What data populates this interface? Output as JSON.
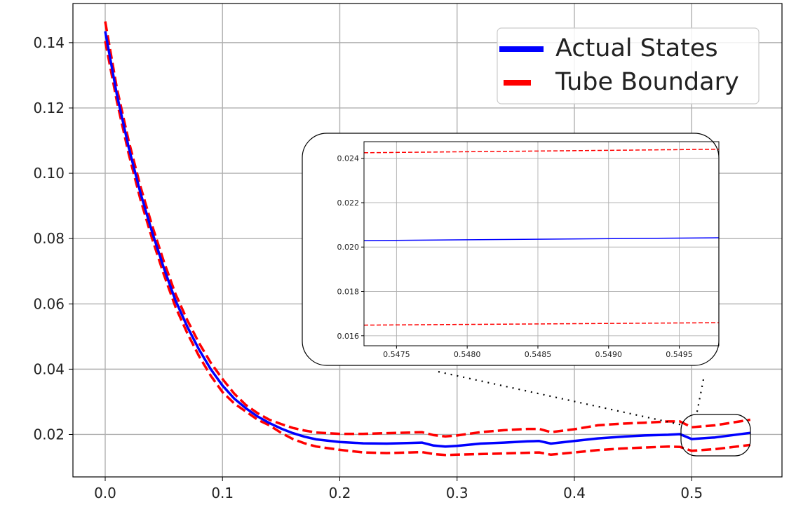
{
  "colors": {
    "actual": "#0000ff",
    "tube": "#ff0000",
    "grid": "#b0b0b0",
    "axis": "#000000"
  },
  "chart_data": [
    {
      "id": "main",
      "type": "line",
      "title": "",
      "xlabel": "",
      "ylabel": "",
      "xlim": [
        -0.0275,
        0.577
      ],
      "ylim": [
        0.007,
        0.152
      ],
      "grid": true,
      "legend_position": "top-right",
      "xticks": [
        0.0,
        0.1,
        0.2,
        0.3,
        0.4,
        0.5
      ],
      "xtick_labels": [
        "0.0",
        "0.1",
        "0.2",
        "0.3",
        "0.4",
        "0.5"
      ],
      "yticks": [
        0.02,
        0.04,
        0.06,
        0.08,
        0.1,
        0.12,
        0.14
      ],
      "ytick_labels": [
        "0.02",
        "0.04",
        "0.06",
        "0.08",
        "0.10",
        "0.12",
        "0.14"
      ],
      "x": [
        0.0,
        0.01,
        0.02,
        0.03,
        0.04,
        0.05,
        0.06,
        0.07,
        0.08,
        0.09,
        0.1,
        0.11,
        0.12,
        0.13,
        0.14,
        0.15,
        0.16,
        0.17,
        0.18,
        0.2,
        0.22,
        0.24,
        0.26,
        0.27,
        0.28,
        0.29,
        0.3,
        0.32,
        0.34,
        0.36,
        0.37,
        0.38,
        0.4,
        0.42,
        0.44,
        0.46,
        0.48,
        0.49,
        0.5,
        0.52,
        0.55
      ],
      "series": [
        {
          "name": "Actual States",
          "style": "solid",
          "values": [
            0.1435,
            0.124,
            0.108,
            0.094,
            0.082,
            0.071,
            0.061,
            0.053,
            0.046,
            0.04,
            0.035,
            0.031,
            0.028,
            0.0255,
            0.0235,
            0.0218,
            0.0204,
            0.0193,
            0.0185,
            0.0177,
            0.0173,
            0.0172,
            0.0174,
            0.0175,
            0.0166,
            0.0163,
            0.0165,
            0.0172,
            0.0175,
            0.0179,
            0.018,
            0.0172,
            0.018,
            0.0188,
            0.0193,
            0.0197,
            0.0199,
            0.0201,
            0.0186,
            0.0191,
            0.0205
          ]
        },
        {
          "name": "Tube Boundary",
          "style": "dashed",
          "values": [
            0.1465,
            0.126,
            0.11,
            0.096,
            0.084,
            0.073,
            0.063,
            0.055,
            0.048,
            0.042,
            0.037,
            0.0325,
            0.029,
            0.0265,
            0.0245,
            0.0232,
            0.022,
            0.0212,
            0.0206,
            0.0202,
            0.0202,
            0.0204,
            0.0206,
            0.0207,
            0.0198,
            0.0194,
            0.0197,
            0.0207,
            0.0213,
            0.0217,
            0.0217,
            0.0207,
            0.0216,
            0.0228,
            0.0233,
            0.0236,
            0.024,
            0.024,
            0.0222,
            0.0228,
            0.0245
          ]
        },
        {
          "name": "",
          "style": "dashed",
          "values": [
            0.1405,
            0.122,
            0.106,
            0.092,
            0.08,
            0.069,
            0.059,
            0.051,
            0.044,
            0.038,
            0.033,
            0.0295,
            0.027,
            0.0245,
            0.0228,
            0.0205,
            0.0186,
            0.0173,
            0.0163,
            0.0153,
            0.0145,
            0.0143,
            0.0145,
            0.0146,
            0.014,
            0.0137,
            0.0138,
            0.014,
            0.0142,
            0.0144,
            0.0145,
            0.0138,
            0.0145,
            0.0152,
            0.0157,
            0.016,
            0.0163,
            0.0162,
            0.015,
            0.0155,
            0.0168
          ]
        }
      ]
    },
    {
      "id": "inset",
      "type": "line",
      "title": "",
      "xlabel": "",
      "ylabel": "",
      "xlim": [
        0.54727,
        0.54978
      ],
      "ylim": [
        0.01555,
        0.02475
      ],
      "grid": true,
      "xticks": [
        0.5475,
        0.548,
        0.5485,
        0.549,
        0.5495
      ],
      "xtick_labels": [
        "0.5475",
        "0.5480",
        "0.5485",
        "0.5490",
        "0.5495"
      ],
      "yticks": [
        0.016,
        0.018,
        0.02,
        0.022,
        0.024
      ],
      "ytick_labels": [
        "0.016",
        "0.018",
        "0.020",
        "0.022",
        "0.024"
      ],
      "x": [
        0.54727,
        0.54978
      ],
      "series": [
        {
          "name": "Actual States",
          "style": "solid",
          "values": [
            0.02029,
            0.02042
          ]
        },
        {
          "name": "Tube Boundary",
          "style": "dashed",
          "values": [
            0.02425,
            0.02441
          ]
        },
        {
          "name": "",
          "style": "dashed",
          "values": [
            0.01648,
            0.01659
          ]
        }
      ]
    }
  ],
  "legend": {
    "items": [
      {
        "label": "Actual States",
        "style": "solid",
        "color": "#0000ff"
      },
      {
        "label": "Tube Boundary",
        "style": "dashed",
        "color": "#ff0000"
      }
    ]
  }
}
